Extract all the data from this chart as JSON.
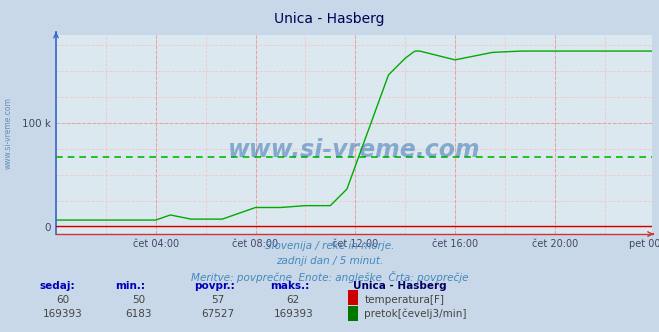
{
  "title": "Unica - Hasberg",
  "bg_color": "#c8d8e8",
  "plot_bg_color": "#dce8f0",
  "grid_color_minor": "#f0c8c8",
  "grid_color_major": "#e8a0a0",
  "avg_line_color": "#00bb00",
  "avg_value": 67527,
  "y_max": 185000,
  "x_labels": [
    "čet 04:00",
    "čet 08:00",
    "čet 12:00",
    "čet 16:00",
    "čet 20:00",
    "pet 00:00"
  ],
  "subtitle_lines": [
    "Slovenija / reke in morje.",
    "zadnji dan / 5 minut.",
    "Meritve: povprečne  Enote: angleške  Črta: povprečje"
  ],
  "row1": [
    "60",
    "50",
    "57",
    "62"
  ],
  "row2": [
    "169393",
    "6183",
    "67527",
    "169393"
  ],
  "legend1_label": "temperatura[F]",
  "legend1_color": "#cc0000",
  "legend2_label": "pretok[čevelj3/min]",
  "legend2_color": "#007700",
  "station_name": "Unica - Hasberg",
  "watermark": "www.si-vreme.com",
  "watermark_color": "#1a5fa8",
  "sidebar_text": "www.si-vreme.com",
  "sidebar_color": "#6090b0",
  "temp_color": "#cc0000",
  "flow_color": "#00aa00",
  "spine_left_color": "#3366cc",
  "spine_bottom_color": "#cc3333",
  "tick_label_color": "#444466"
}
